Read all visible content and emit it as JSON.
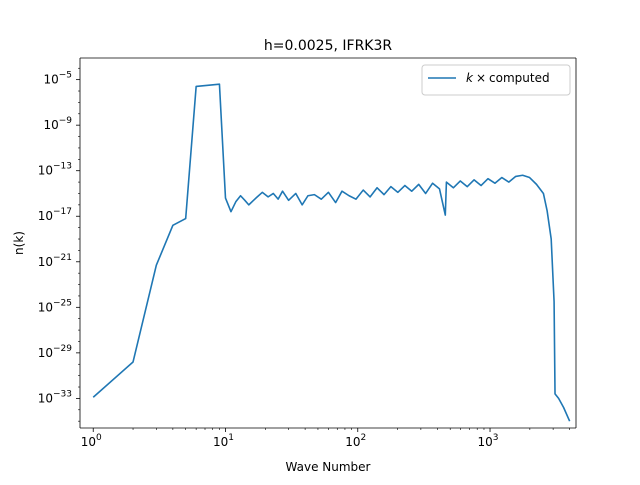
{
  "chart_data": {
    "type": "line",
    "title": "h=0.0025, IFRK3R",
    "xlabel": "Wave Number",
    "ylabel": "n(k)",
    "xscale": "log",
    "yscale": "log",
    "xlim_exp": [
      -0.1,
      3.65
    ],
    "ylim_exp": [
      -35.6,
      -3.1
    ],
    "grid": false,
    "legend_position": "top-right",
    "color": "#1f77b4",
    "xticks": [
      {
        "base": "10",
        "exp": "0",
        "value": 1
      },
      {
        "base": "10",
        "exp": "1",
        "value": 10
      },
      {
        "base": "10",
        "exp": "2",
        "value": 100
      },
      {
        "base": "10",
        "exp": "3",
        "value": 1000
      }
    ],
    "yticks": [
      {
        "base": "10",
        "exp": "−33",
        "value": -33
      },
      {
        "base": "10",
        "exp": "−29",
        "value": -29
      },
      {
        "base": "10",
        "exp": "−25",
        "value": -25
      },
      {
        "base": "10",
        "exp": "−21",
        "value": -21
      },
      {
        "base": "10",
        "exp": "−17",
        "value": -17
      },
      {
        "base": "10",
        "exp": "−13",
        "value": -13
      },
      {
        "base": "10",
        "exp": "−9",
        "value": -9
      },
      {
        "base": "10",
        "exp": "−5",
        "value": -5
      }
    ],
    "series": [
      {
        "name": "k × computed",
        "legend_math": "k",
        "legend_op": "×",
        "legend_text": "computed",
        "points": [
          [
            1,
            -32.9
          ],
          [
            2,
            -29.8
          ],
          [
            3,
            -21.3
          ],
          [
            4,
            -17.8
          ],
          [
            5,
            -17.2
          ],
          [
            6,
            -5.6
          ],
          [
            9,
            -5.4
          ],
          [
            10,
            -15.4
          ],
          [
            11,
            -16.6
          ],
          [
            12,
            -15.7
          ],
          [
            13,
            -15.2
          ],
          [
            14,
            -15.6
          ],
          [
            15,
            -16.0
          ],
          [
            17,
            -15.4
          ],
          [
            19,
            -14.9
          ],
          [
            21,
            -15.3
          ],
          [
            23,
            -15.0
          ],
          [
            25,
            -15.5
          ],
          [
            27,
            -14.8
          ],
          [
            30,
            -15.6
          ],
          [
            34,
            -15.0
          ],
          [
            38,
            -16.0
          ],
          [
            42,
            -15.2
          ],
          [
            47,
            -15.1
          ],
          [
            53,
            -15.5
          ],
          [
            60,
            -14.9
          ],
          [
            68,
            -15.8
          ],
          [
            76,
            -14.8
          ],
          [
            86,
            -15.2
          ],
          [
            97,
            -15.5
          ],
          [
            110,
            -14.7
          ],
          [
            124,
            -15.3
          ],
          [
            140,
            -14.5
          ],
          [
            158,
            -15.1
          ],
          [
            178,
            -14.4
          ],
          [
            201,
            -14.9
          ],
          [
            227,
            -14.3
          ],
          [
            256,
            -14.8
          ],
          [
            289,
            -14.2
          ],
          [
            326,
            -15.0
          ],
          [
            368,
            -14.1
          ],
          [
            415,
            -14.6
          ],
          [
            459,
            -16.9
          ],
          [
            468,
            -14.0
          ],
          [
            528,
            -14.5
          ],
          [
            596,
            -13.9
          ],
          [
            672,
            -14.4
          ],
          [
            758,
            -13.8
          ],
          [
            855,
            -14.3
          ],
          [
            965,
            -13.7
          ],
          [
            1089,
            -14.1
          ],
          [
            1229,
            -13.6
          ],
          [
            1386,
            -14.0
          ],
          [
            1564,
            -13.5
          ],
          [
            1765,
            -13.4
          ],
          [
            1991,
            -13.6
          ],
          [
            2246,
            -14.2
          ],
          [
            2533,
            -15.0
          ],
          [
            2700,
            -16.5
          ],
          [
            2900,
            -19.0
          ],
          [
            3050,
            -24.5
          ],
          [
            3100,
            -32.6
          ],
          [
            3300,
            -33.0
          ],
          [
            3600,
            -33.8
          ],
          [
            4000,
            -35.0
          ]
        ]
      }
    ]
  }
}
